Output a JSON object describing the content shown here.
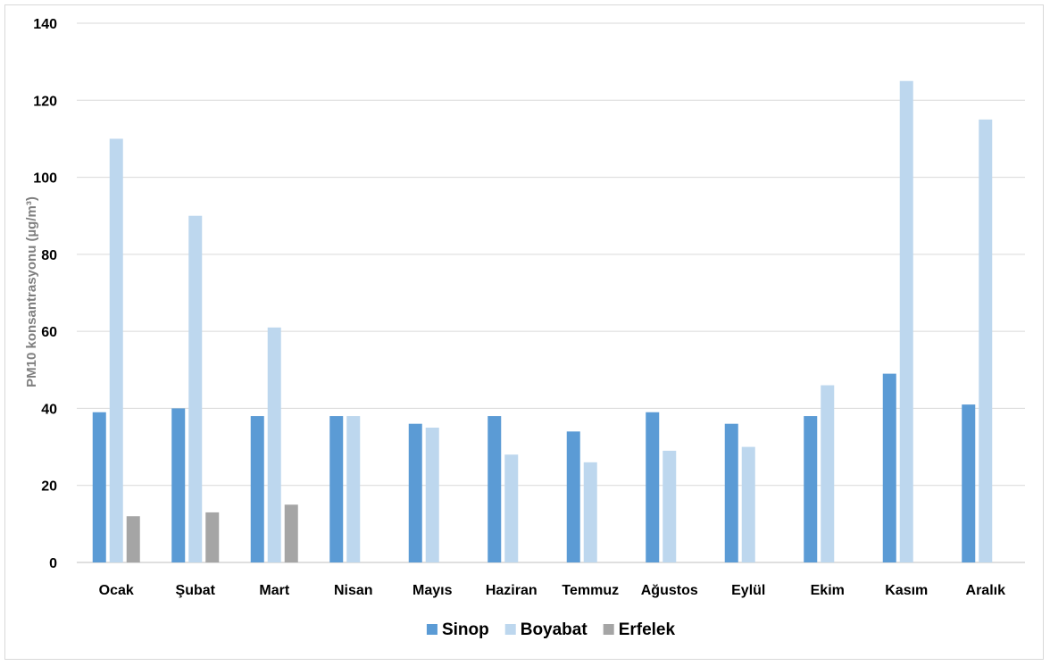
{
  "chart_data": {
    "type": "bar",
    "title": "",
    "xlabel": "",
    "ylabel": "PM10 konsantrasyonu (µg/m³)",
    "ylim": [
      0,
      140
    ],
    "yticks": [
      0,
      20,
      40,
      60,
      80,
      100,
      120,
      140
    ],
    "grid": true,
    "legend_position": "bottom",
    "categories": [
      "Ocak",
      "Şubat",
      "Mart",
      "Nisan",
      "Mayıs",
      "Haziran",
      "Temmuz",
      "Ağustos",
      "Eylül",
      "Ekim",
      "Kasım",
      "Aralık"
    ],
    "series": [
      {
        "name": "Sinop",
        "color": "#5b9bd5",
        "values": [
          39,
          40,
          38,
          38,
          36,
          38,
          34,
          39,
          36,
          38,
          49,
          41
        ]
      },
      {
        "name": "Boyabat",
        "color": "#bdd7ee",
        "values": [
          110,
          90,
          61,
          38,
          35,
          28,
          26,
          29,
          30,
          46,
          125,
          115
        ]
      },
      {
        "name": "Erfelek",
        "color": "#a5a5a5",
        "values": [
          12,
          13,
          15,
          null,
          null,
          null,
          null,
          null,
          null,
          null,
          null,
          null
        ]
      }
    ]
  }
}
